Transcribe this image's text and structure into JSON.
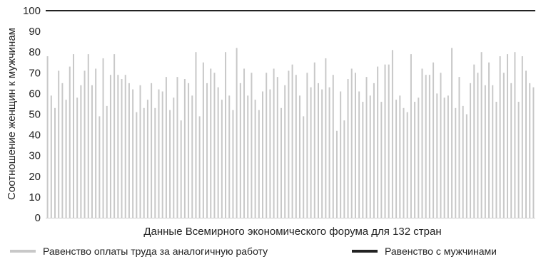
{
  "chart_data": {
    "type": "bar",
    "ylabel": "Соотношение женщин к мужчинам",
    "xlabel": "Данные Всемирного экономического форума для 132 стран",
    "ylim": [
      0,
      100
    ],
    "yticks": [
      0,
      10,
      20,
      30,
      40,
      50,
      60,
      70,
      80,
      90,
      100
    ],
    "reference_line": {
      "name": "Равенство с мужчинами",
      "value": 100,
      "color": "#222222"
    },
    "series": [
      {
        "name": "Равенство оплаты труда за аналогичную работу",
        "color": "#c8c8c8",
        "values": [
          78,
          59,
          53,
          71,
          65,
          57,
          73,
          79,
          58,
          64,
          71,
          79,
          64,
          72,
          49,
          77,
          54,
          69,
          79,
          69,
          67,
          69,
          65,
          62,
          51,
          64,
          53,
          57,
          65,
          53,
          62,
          61,
          68,
          52,
          58,
          68,
          47,
          67,
          65,
          59,
          80,
          49,
          75,
          65,
          72,
          70,
          63,
          57,
          80,
          59,
          52,
          82,
          65,
          72,
          59,
          70,
          57,
          52,
          61,
          70,
          62,
          72,
          68,
          53,
          64,
          71,
          74,
          69,
          59,
          49,
          70,
          63,
          75,
          65,
          62,
          77,
          63,
          69,
          42,
          61,
          47,
          67,
          72,
          70,
          61,
          56,
          68,
          59,
          65,
          73,
          56,
          74,
          74,
          81,
          57,
          59,
          53,
          51,
          79,
          56,
          58,
          72,
          69,
          69,
          75,
          60,
          70,
          58,
          59,
          82,
          53,
          68,
          54,
          50,
          65,
          74,
          70,
          80,
          64,
          75,
          64,
          56,
          78,
          70,
          79,
          65,
          80,
          56,
          78,
          71,
          65,
          63
        ]
      }
    ]
  }
}
